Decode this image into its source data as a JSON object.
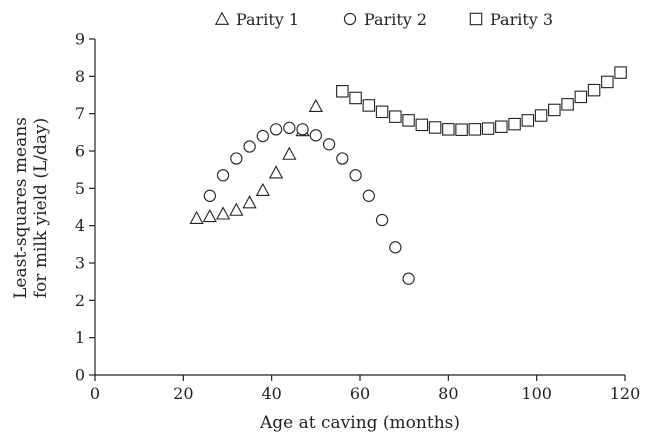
{
  "chart_data": {
    "type": "scatter",
    "xlabel": "Age at caving (months)",
    "ylabel_line1": "Least-squares means",
    "ylabel_line2": "for milk yield (L/day)",
    "xlim": [
      0,
      120
    ],
    "ylim": [
      0,
      9
    ],
    "x_ticks": [
      "0",
      "20",
      "40",
      "60",
      "80",
      "100",
      "120"
    ],
    "y_ticks": [
      "0",
      "1",
      "2",
      "3",
      "4",
      "5",
      "6",
      "7",
      "8",
      "9"
    ],
    "grid": false,
    "legend_position": "top",
    "series": [
      {
        "name": "Parity 1",
        "marker": "triangle",
        "x": [
          23,
          26,
          29,
          32,
          35,
          38,
          41,
          44,
          47,
          50
        ],
        "y": [
          4.2,
          4.25,
          4.32,
          4.42,
          4.62,
          4.95,
          5.42,
          5.92,
          6.55,
          7.2
        ]
      },
      {
        "name": "Parity 2",
        "marker": "circle",
        "x": [
          26,
          29,
          32,
          35,
          38,
          41,
          44,
          47,
          50,
          53,
          56,
          59,
          62,
          65,
          68,
          71
        ],
        "y": [
          4.8,
          5.35,
          5.8,
          6.12,
          6.4,
          6.58,
          6.62,
          6.58,
          6.42,
          6.18,
          5.8,
          5.35,
          4.8,
          4.15,
          3.42,
          2.58
        ]
      },
      {
        "name": "Parity 3",
        "marker": "square",
        "x": [
          56,
          59,
          62,
          65,
          68,
          71,
          74,
          77,
          80,
          83,
          86,
          89,
          92,
          95,
          98,
          101,
          104,
          107,
          110,
          113,
          116,
          119
        ],
        "y": [
          7.6,
          7.42,
          7.22,
          7.05,
          6.92,
          6.82,
          6.7,
          6.63,
          6.58,
          6.57,
          6.58,
          6.6,
          6.65,
          6.72,
          6.82,
          6.95,
          7.1,
          7.25,
          7.45,
          7.63,
          7.85,
          8.1
        ]
      }
    ]
  }
}
